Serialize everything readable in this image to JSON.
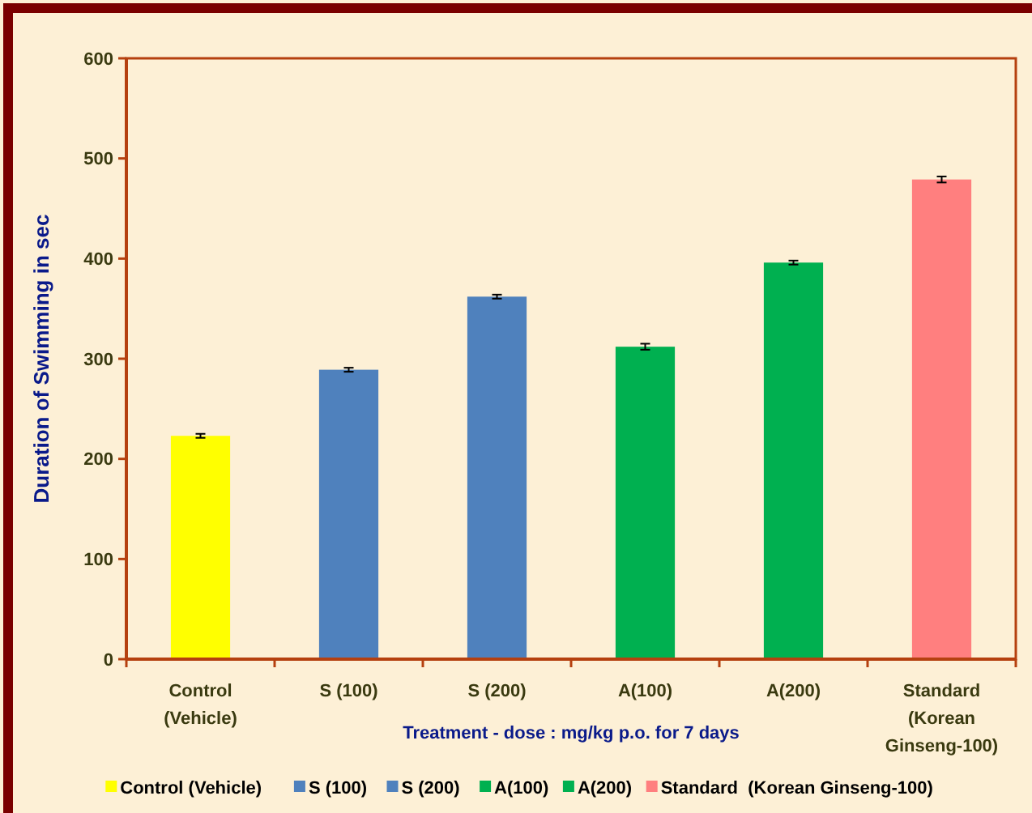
{
  "chart_data": {
    "type": "bar",
    "xlabel": "Treatment - dose : mg/kg p.o. for 7 days",
    "ylabel": "Duration of Swimming in sec",
    "categories": [
      "Control\n(Vehicle)",
      "S (100)",
      "S (200)",
      "A(100)",
      "A(200)",
      "Standard\n(Korean\nGinseng-100)"
    ],
    "series": [
      {
        "name": "Control (Vehicle)",
        "color": "#ffff00",
        "values": [
          223,
          null,
          null,
          null,
          null,
          null
        ],
        "errors": [
          2,
          null,
          null,
          null,
          null,
          null
        ]
      },
      {
        "name": "S (100)",
        "color": "#4f81bd",
        "values": [
          null,
          289,
          null,
          null,
          null,
          null
        ],
        "errors": [
          null,
          2,
          null,
          null,
          null,
          null
        ]
      },
      {
        "name": "S (200)",
        "color": "#4f81bd",
        "values": [
          null,
          null,
          362,
          null,
          null,
          null
        ],
        "errors": [
          null,
          null,
          2,
          null,
          null,
          null
        ]
      },
      {
        "name": "A(100)",
        "color": "#00b050",
        "values": [
          null,
          null,
          null,
          312,
          null,
          null
        ],
        "errors": [
          null,
          null,
          null,
          3,
          null,
          null
        ]
      },
      {
        "name": "A(200)",
        "color": "#00b050",
        "values": [
          null,
          null,
          null,
          null,
          396,
          null
        ],
        "errors": [
          null,
          null,
          null,
          null,
          2,
          null
        ]
      },
      {
        "name": "Standard  (Korean Ginseng-100)",
        "color": "#ff7f7f",
        "values": [
          null,
          null,
          null,
          null,
          null,
          479
        ],
        "errors": [
          null,
          null,
          null,
          null,
          null,
          3
        ]
      }
    ],
    "ylim": [
      0,
      600
    ],
    "yticks": [
      0,
      100,
      200,
      300,
      400,
      500,
      600
    ],
    "legend": "bottom"
  }
}
